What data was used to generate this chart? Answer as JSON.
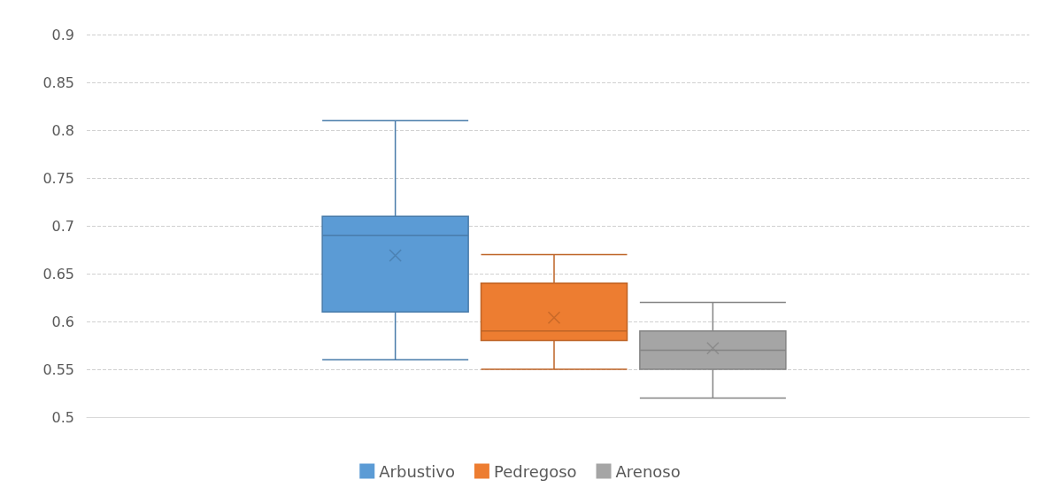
{
  "chart_data": {
    "type": "box",
    "categories": [
      null
    ],
    "series": [
      {
        "name": "Arbustivo",
        "color": "#5b9bd5",
        "boxes": [
          {
            "low": 0.56,
            "q1": 0.61,
            "median": 0.69,
            "q3": 0.71,
            "high": 0.81,
            "mean": 0.669
          }
        ]
      },
      {
        "name": "Pedregoso",
        "color": "#ed7d31",
        "boxes": [
          {
            "low": 0.55,
            "q1": 0.58,
            "median": 0.59,
            "q3": 0.64,
            "high": 0.67,
            "mean": 0.604
          }
        ]
      },
      {
        "name": "Arenoso",
        "color": "#a5a5a5",
        "boxes": [
          {
            "low": 0.52,
            "q1": 0.55,
            "median": 0.57,
            "q3": 0.59,
            "high": 0.62,
            "mean": 0.572
          }
        ]
      }
    ],
    "ylim": [
      0.5,
      0.9
    ],
    "yticks": [
      0.5,
      0.55,
      0.6,
      0.65,
      0.7,
      0.75,
      0.8,
      0.85,
      0.9
    ],
    "grid": "y",
    "legend": "bottom",
    "marker": "cross"
  }
}
